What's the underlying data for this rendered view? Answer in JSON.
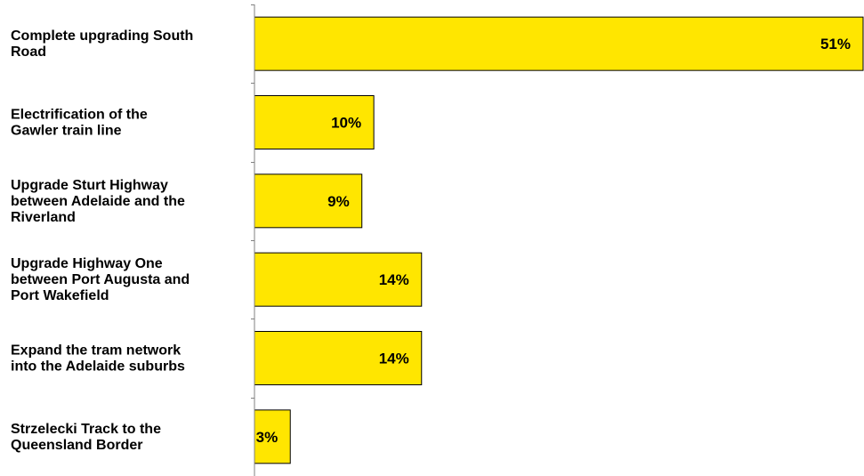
{
  "chart_data": {
    "type": "bar",
    "orientation": "horizontal",
    "categories": [
      [
        "Complete upgrading South",
        "Road"
      ],
      [
        "Electrification of the",
        "Gawler train line"
      ],
      [
        "Upgrade Sturt Highway",
        "between Adelaide and the",
        "Riverland"
      ],
      [
        "Upgrade Highway One",
        "between Port Augusta and",
        "Port Wakefield"
      ],
      [
        "Expand the tram network",
        "into the Adelaide suburbs"
      ],
      [
        "Strzelecki Track to the",
        "Queensland Border"
      ]
    ],
    "values": [
      51,
      10,
      9,
      14,
      14,
      3
    ],
    "data_labels": [
      "51%",
      "10%",
      "9%",
      "14%",
      "14%",
      "3%"
    ],
    "unit": "%",
    "xlim": [
      0,
      51
    ],
    "grid": false,
    "legend": "none",
    "colors": {
      "bar_fill": "#FFE600",
      "bar_stroke": "#000000",
      "axis": "#808080",
      "text": "#000000"
    }
  }
}
